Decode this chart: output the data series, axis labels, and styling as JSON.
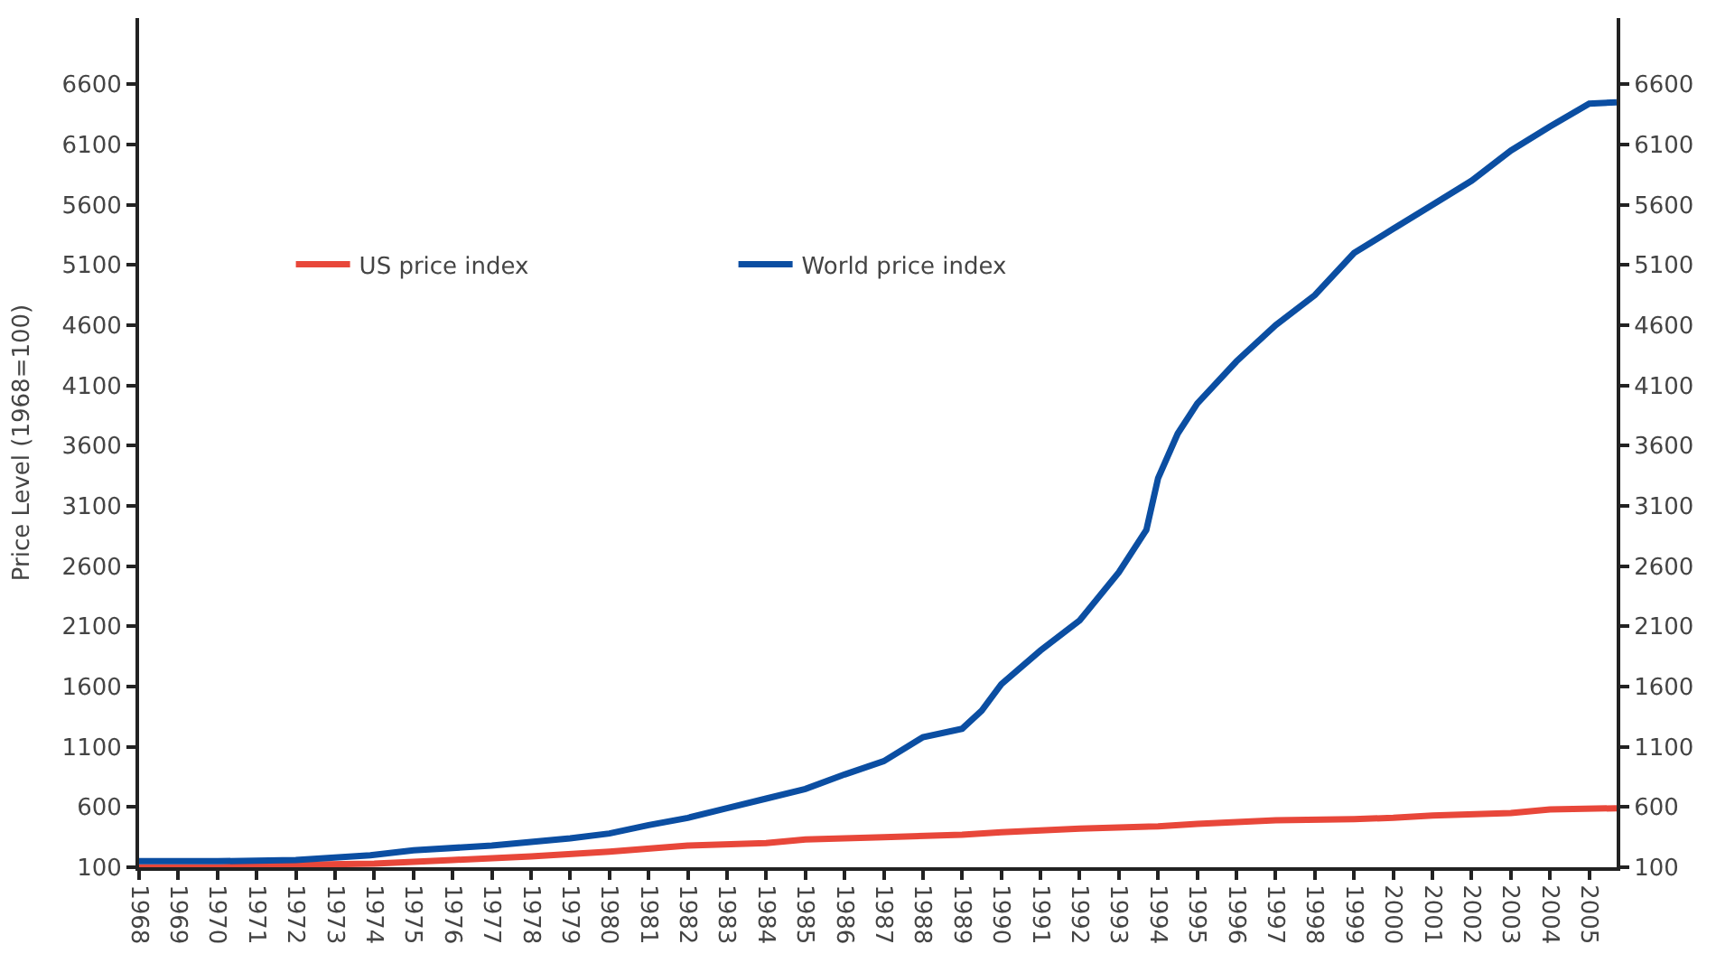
{
  "chart_data": {
    "type": "line",
    "ylabel": "Price Level (1968=100)",
    "xlim": [
      1968,
      2005.7
    ],
    "xticks": [
      1968,
      1969,
      1970,
      1971,
      1972,
      1973,
      1974,
      1975,
      1976,
      1977,
      1978,
      1979,
      1980,
      1981,
      1982,
      1983,
      1984,
      1985,
      1986,
      1987,
      1988,
      1989,
      1990,
      1991,
      1992,
      1993,
      1994,
      1995,
      1996,
      1997,
      1998,
      1999,
      2000,
      2001,
      2002,
      2003,
      2004,
      2005
    ],
    "ylim": [
      100,
      7150
    ],
    "yticks": [
      100,
      600,
      1100,
      1600,
      2100,
      2600,
      3100,
      3600,
      4100,
      4600,
      5100,
      5600,
      6100,
      6600
    ],
    "y2lim": [
      100,
      7150
    ],
    "y2ticks": [
      100,
      600,
      1100,
      1600,
      2100,
      2600,
      3100,
      3600,
      4100,
      4600,
      5100,
      5600,
      6100,
      6600
    ],
    "legend": "top left",
    "marker": "none",
    "line_style": "solid",
    "series": [
      {
        "name": "US price index",
        "color": "#e8473a",
        "x": [
          1968,
          1970,
          1972,
          1974,
          1976,
          1978,
          1980,
          1982,
          1984,
          1985,
          1987,
          1989,
          1990,
          1992,
          1994,
          1995,
          1997,
          1999,
          2000,
          2001,
          2003,
          2004,
          2005.7
        ],
        "values": [
          100,
          100,
          120,
          130,
          160,
          190,
          230,
          280,
          300,
          330,
          350,
          370,
          390,
          420,
          440,
          460,
          490,
          500,
          510,
          530,
          550,
          580,
          590
        ]
      },
      {
        "name": "World price index",
        "color": "#0b4ea2",
        "x": [
          1968,
          1970,
          1972,
          1973.9,
          1975,
          1977,
          1979,
          1980,
          1981,
          1982,
          1983,
          1984,
          1985,
          1986,
          1987,
          1988,
          1989,
          1989.5,
          1990,
          1991,
          1992,
          1993,
          1993.7,
          1994,
          1994.5,
          1995,
          1996,
          1997,
          1998,
          1999,
          2000,
          2001,
          2002,
          2003,
          2004,
          2005,
          2005.7
        ],
        "values": [
          150,
          150,
          160,
          200,
          240,
          280,
          340,
          380,
          450,
          510,
          590,
          670,
          750,
          870,
          980,
          1180,
          1250,
          1400,
          1620,
          1900,
          2150,
          2550,
          2900,
          3330,
          3700,
          3950,
          4300,
          4600,
          4850,
          5200,
          5400,
          5600,
          5800,
          6050,
          6250,
          6440,
          6450
        ]
      }
    ]
  }
}
